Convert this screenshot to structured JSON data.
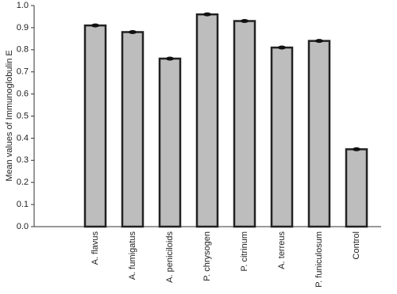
{
  "chart_data": {
    "type": "bar",
    "y_label": "Mean values of Immunoglobulin E",
    "categories": [
      "A. flavus",
      "A. fumigatus",
      "A. peniciloids",
      "P. chrysogen",
      "P. citrinum",
      "A. terreus",
      "P. funiculosum",
      "Control"
    ],
    "values": [
      0.91,
      0.88,
      0.76,
      0.96,
      0.93,
      0.81,
      0.84,
      0.35
    ],
    "color": "#bdbdbd",
    "ylim": [
      0,
      1.0
    ],
    "yticks": [
      {
        "value": 0,
        "label": "0.0"
      },
      0.1,
      0.2,
      0.3,
      0.4,
      0.5,
      0.6,
      0.7,
      0.8,
      0.9,
      {
        "value": 1.0,
        "label": "1.0"
      }
    ],
    "grid": false
  }
}
